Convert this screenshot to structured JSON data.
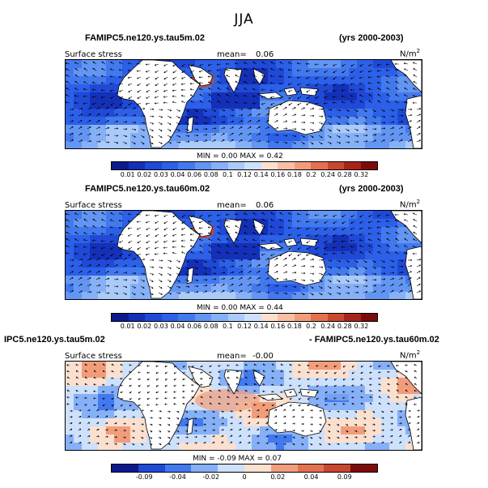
{
  "title": "JJA",
  "panels": [
    {
      "case_label": "FAMIPC5.ne120.ys.tau5m.02",
      "years": "(yrs 2000-2003)",
      "field": "Surface stress",
      "mean_label": "mean=",
      "mean_value": "0.06",
      "units": "N/m",
      "units_sup": "2",
      "stats": "MIN =    0.00  MAX =    0.42",
      "colorbar_ticks": [
        "0.01",
        "0.02",
        "0.03",
        "0.04",
        "0.06",
        "0.08",
        "0.1",
        "0.12",
        "0.14",
        "0.16",
        "0.18",
        "0.2",
        "0.24",
        "0.28",
        "0.32"
      ]
    },
    {
      "case_label": "FAMIPC5.ne120.ys.tau60m.02",
      "years": "(yrs 2000-2003)",
      "field": "Surface stress",
      "mean_label": "mean=",
      "mean_value": "0.06",
      "units": "N/m",
      "units_sup": "2",
      "stats": "MIN =    0.00  MAX =    0.44",
      "colorbar_ticks": [
        "0.01",
        "0.02",
        "0.03",
        "0.04",
        "0.06",
        "0.08",
        "0.1",
        "0.12",
        "0.14",
        "0.16",
        "0.18",
        "0.2",
        "0.24",
        "0.28",
        "0.32"
      ]
    },
    {
      "case_label_left": "IPC5.ne120.ys.tau5m.02",
      "case_label_right": "- FAMIPC5.ne120.ys.tau60m.02",
      "field": "Surface stress",
      "mean_label": "mean=",
      "mean_value": "-0.00",
      "units": "N/m",
      "units_sup": "2",
      "stats": "MIN =   -0.09  MAX =    0.07",
      "colorbar_ticks": [
        "-0.09",
        "-0.04",
        "-0.02",
        "0",
        "0.02",
        "0.04",
        "0.09"
      ]
    }
  ],
  "colors": {
    "seq": [
      "#0a1a8c",
      "#1530b8",
      "#1f49d6",
      "#2c60e8",
      "#4379ee",
      "#6395f3",
      "#86b0f7",
      "#aacbfa",
      "#cde0fc",
      "#fbe0d0",
      "#f7c0a4",
      "#f19d7b",
      "#e4704f",
      "#cb4630",
      "#a92418",
      "#7d0b0b"
    ],
    "div": [
      "#0a1a8c",
      "#1f49d6",
      "#4379ee",
      "#86b0f7",
      "#cde0fc",
      "#fbe0d0",
      "#f19d7b",
      "#e4704f",
      "#cb4630",
      "#7d0b0b"
    ],
    "land": "#ffffff",
    "ocean_weak": "#6f9ff2",
    "ocean_strong": "#2745c9"
  }
}
